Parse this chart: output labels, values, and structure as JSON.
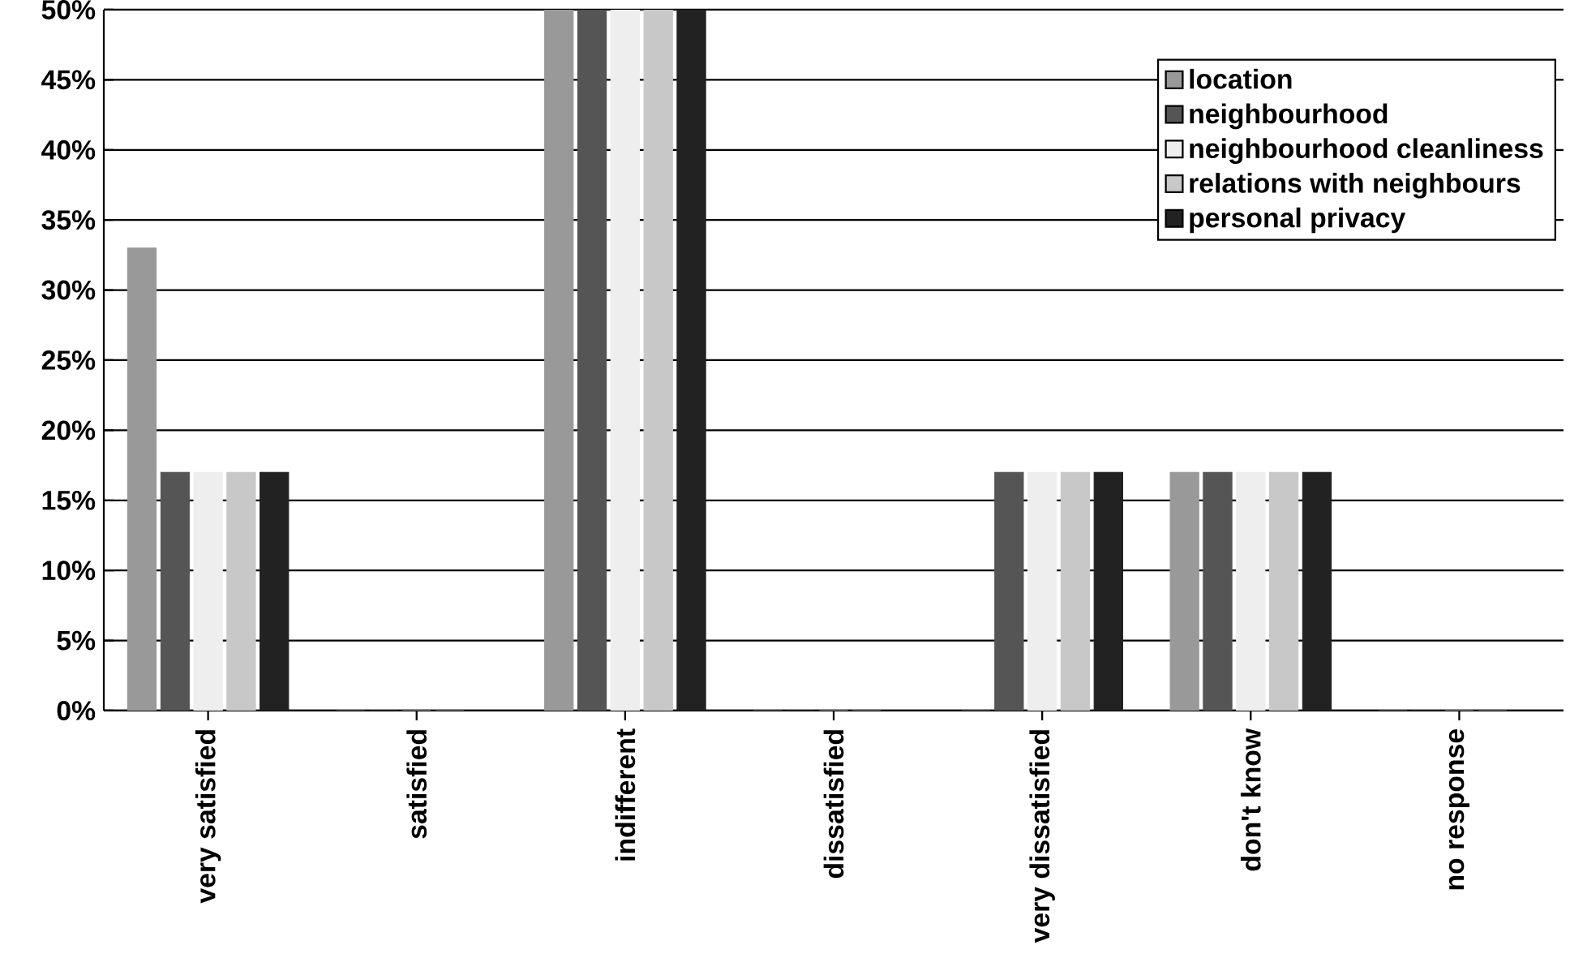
{
  "chart_data": {
    "type": "bar",
    "categories": [
      "very satisfied",
      "satisfied",
      "indifferent",
      "dissatisfied",
      "very dissatisfied",
      "don't know",
      "no response"
    ],
    "series": [
      {
        "name": "location",
        "color": "#999999",
        "values": [
          33,
          0,
          50,
          0,
          0,
          17,
          0
        ]
      },
      {
        "name": "neighbourhood",
        "color": "#555555",
        "values": [
          17,
          0,
          50,
          0,
          17,
          17,
          0
        ]
      },
      {
        "name": "neighbourhood cleanliness",
        "color": "#eeeeee",
        "values": [
          17,
          0,
          50,
          0,
          17,
          17,
          0
        ]
      },
      {
        "name": "relations with neighbours",
        "color": "#c8c8c8",
        "values": [
          17,
          0,
          50,
          0,
          17,
          17,
          0
        ]
      },
      {
        "name": "personal privacy",
        "color": "#222222",
        "values": [
          17,
          0,
          50,
          0,
          17,
          17,
          0
        ]
      }
    ],
    "ylim": [
      0,
      50
    ],
    "yticks": [
      {
        "value": 0,
        "label": "0%"
      },
      {
        "value": 5,
        "label": "5%"
      },
      {
        "value": 10,
        "label": "10%"
      },
      {
        "value": 15,
        "label": "15%"
      },
      {
        "value": 20,
        "label": "20%"
      },
      {
        "value": 25,
        "label": "25%"
      },
      {
        "value": 30,
        "label": "30%"
      },
      {
        "value": 35,
        "label": "35%"
      },
      {
        "value": 40,
        "label": "40%"
      },
      {
        "value": 45,
        "label": "45%"
      },
      {
        "value": 50,
        "label": "50%"
      }
    ],
    "grid": "y",
    "legend": "top right"
  }
}
